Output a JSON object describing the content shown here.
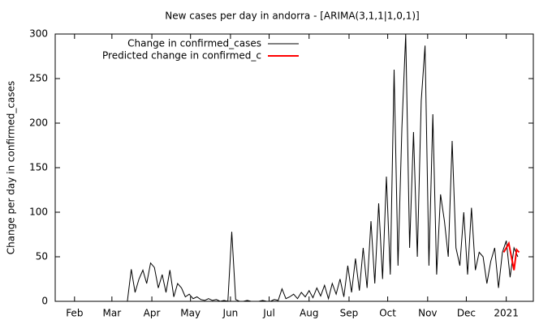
{
  "chart_data": {
    "type": "line",
    "title": "New cases per day in andorra -  [ARIMA(3,1,1|1,0,1)]",
    "y_label": "Change per day in confirmed_cases",
    "legend": "top-left",
    "xlim": [
      16,
      387
    ],
    "ylim": [
      0,
      300
    ],
    "xticks": [
      {
        "value": 31,
        "label": "Feb"
      },
      {
        "value": 60,
        "label": "Mar"
      },
      {
        "value": 91,
        "label": "Apr"
      },
      {
        "value": 121,
        "label": "May"
      },
      {
        "value": 152,
        "label": "Jun"
      },
      {
        "value": 182,
        "label": "Jul"
      },
      {
        "value": 213,
        "label": "Aug"
      },
      {
        "value": 244,
        "label": "Sep"
      },
      {
        "value": 274,
        "label": "Oct"
      },
      {
        "value": 305,
        "label": "Nov"
      },
      {
        "value": 335,
        "label": "Dec"
      },
      {
        "value": 366,
        "label": "2021"
      }
    ],
    "yticks": [
      0,
      50,
      100,
      150,
      200,
      250,
      300
    ],
    "series": [
      {
        "name": "Change in confirmed_cases",
        "color": "#000000",
        "x": [
          60,
          63,
          66,
          69,
          72,
          75,
          78,
          81,
          84,
          87,
          90,
          93,
          96,
          99,
          102,
          105,
          108,
          111,
          114,
          117,
          120,
          123,
          126,
          129,
          132,
          135,
          138,
          141,
          144,
          147,
          150,
          153,
          156,
          159,
          162,
          165,
          168,
          171,
          174,
          177,
          180,
          183,
          186,
          189,
          192,
          195,
          198,
          201,
          204,
          207,
          210,
          213,
          216,
          219,
          222,
          225,
          228,
          231,
          234,
          237,
          240,
          243,
          246,
          249,
          252,
          255,
          258,
          261,
          264,
          267,
          270,
          273,
          276,
          279,
          282,
          285,
          288,
          291,
          294,
          297,
          300,
          303,
          306,
          309,
          312,
          315,
          318,
          321,
          324,
          327,
          330,
          333,
          336,
          339,
          342,
          345,
          348,
          351,
          354,
          357,
          360,
          363,
          366,
          369,
          372,
          375
        ],
        "values": [
          0,
          0,
          0,
          0,
          0,
          36,
          10,
          25,
          35,
          20,
          43,
          38,
          15,
          30,
          10,
          35,
          5,
          20,
          15,
          5,
          8,
          3,
          5,
          2,
          1,
          3,
          1,
          2,
          0,
          1,
          0,
          78,
          2,
          0,
          0,
          1,
          0,
          0,
          0,
          1,
          0,
          0,
          2,
          1,
          14,
          3,
          5,
          8,
          3,
          10,
          5,
          12,
          4,
          15,
          6,
          18,
          3,
          20,
          8,
          25,
          5,
          40,
          10,
          48,
          12,
          60,
          15,
          90,
          20,
          110,
          25,
          140,
          30,
          260,
          40,
          195,
          300,
          60,
          190,
          50,
          225,
          287,
          40,
          210,
          30,
          120,
          90,
          50,
          180,
          60,
          40,
          100,
          30,
          105,
          35,
          55,
          50,
          20,
          45,
          60,
          15,
          55,
          68,
          27,
          60,
          50
        ]
      },
      {
        "name": "Predicted change in confirmed_c",
        "color": "#ff0000",
        "x": [
          364,
          366,
          368,
          370,
          372,
          374,
          376
        ],
        "values": [
          55,
          60,
          65,
          50,
          35,
          58,
          55
        ]
      }
    ]
  }
}
